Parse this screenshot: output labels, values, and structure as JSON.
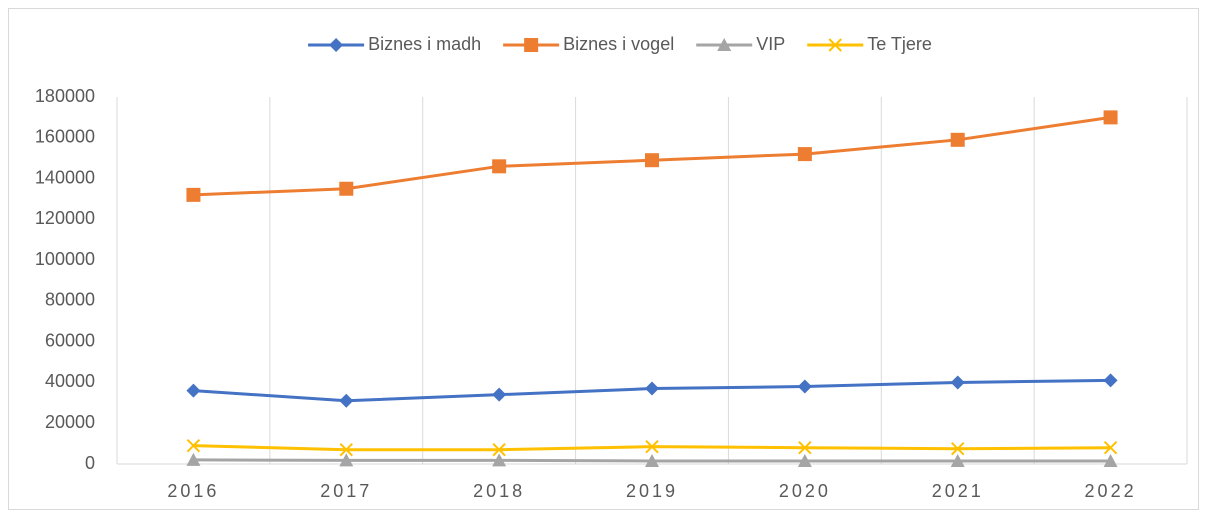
{
  "chart_data": {
    "type": "line",
    "categories": [
      "2016",
      "2017",
      "2018",
      "2019",
      "2020",
      "2021",
      "2022"
    ],
    "series": [
      {
        "name": "Biznes i madh",
        "color": "#4472c4",
        "marker": "diamond",
        "values": [
          36000,
          31000,
          34000,
          37000,
          38000,
          40000,
          41000
        ]
      },
      {
        "name": "Biznes i vogel",
        "color": "#ed7d31",
        "marker": "square",
        "values": [
          132000,
          135000,
          146000,
          149000,
          152000,
          159000,
          170000
        ]
      },
      {
        "name": "VIP",
        "color": "#a5a5a5",
        "marker": "triangle",
        "values": [
          2000,
          1800,
          1800,
          1500,
          1500,
          1500,
          1500
        ]
      },
      {
        "name": "Te Tjere",
        "color": "#ffc000",
        "marker": "x",
        "values": [
          9000,
          7000,
          7000,
          8500,
          8000,
          7500,
          8000
        ]
      }
    ],
    "ylim": [
      0,
      180000
    ],
    "yticks": [
      0,
      20000,
      40000,
      60000,
      80000,
      100000,
      120000,
      140000,
      160000,
      180000
    ],
    "grid": "x",
    "legend": "top"
  }
}
